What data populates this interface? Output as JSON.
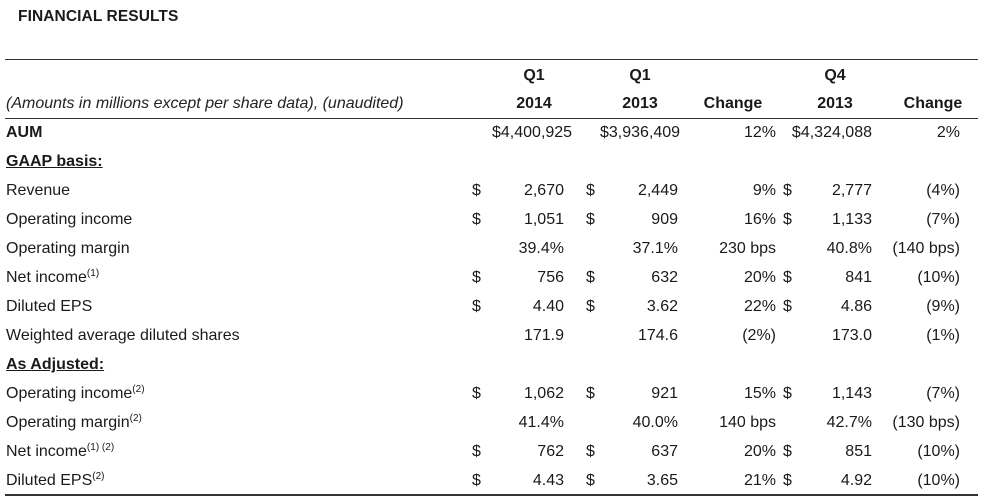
{
  "title": "FINANCIAL RESULTS",
  "header": {
    "note": "(Amounts in millions except per share data), (unaudited)",
    "col1_line1": "Q1",
    "col1_line2": "2014",
    "col2_line1": "Q1",
    "col2_line2": "2013",
    "col3": "Change",
    "col4_line1": "Q4",
    "col4_line2": "2013",
    "col5": "Change"
  },
  "rows": [
    {
      "label": "AUM",
      "sup": "",
      "kind": "bold",
      "d1": "",
      "v1": "$4,400,925",
      "d2": "",
      "v2": "$3,936,409",
      "c1": "12%",
      "d3": "",
      "v3": "$4,324,088",
      "c2": "2%"
    },
    {
      "label": "GAAP basis:",
      "sup": "",
      "kind": "section",
      "d1": "",
      "v1": "",
      "d2": "",
      "v2": "",
      "c1": "",
      "d3": "",
      "v3": "",
      "c2": ""
    },
    {
      "label": "Revenue",
      "sup": "",
      "kind": "normal",
      "d1": "$",
      "v1": "2,670",
      "d2": "$",
      "v2": "2,449",
      "c1": "9%",
      "d3": "$",
      "v3": "2,777",
      "c2": "(4%)"
    },
    {
      "label": "Operating income",
      "sup": "",
      "kind": "normal",
      "d1": "$",
      "v1": "1,051",
      "d2": "$",
      "v2": "909",
      "c1": "16%",
      "d3": "$",
      "v3": "1,133",
      "c2": "(7%)"
    },
    {
      "label": "Operating margin",
      "sup": "",
      "kind": "normal",
      "d1": "",
      "v1": "39.4%",
      "d2": "",
      "v2": "37.1%",
      "c1": "230 bps",
      "d3": "",
      "v3": "40.8%",
      "c2": "(140 bps)"
    },
    {
      "label": "Net income",
      "sup": "(1)",
      "kind": "normal",
      "d1": "$",
      "v1": "756",
      "d2": "$",
      "v2": "632",
      "c1": "20%",
      "d3": "$",
      "v3": "841",
      "c2": "(10%)"
    },
    {
      "label": "Diluted EPS",
      "sup": "",
      "kind": "normal",
      "d1": "$",
      "v1": "4.40",
      "d2": "$",
      "v2": "3.62",
      "c1": "22%",
      "d3": "$",
      "v3": "4.86",
      "c2": "(9%)"
    },
    {
      "label": "Weighted average diluted shares",
      "sup": "",
      "kind": "normal",
      "d1": "",
      "v1": "171.9",
      "d2": "",
      "v2": "174.6",
      "c1": "(2%)",
      "d3": "",
      "v3": "173.0",
      "c2": "(1%)"
    },
    {
      "label": "As Adjusted:",
      "sup": "",
      "kind": "section",
      "d1": "",
      "v1": "",
      "d2": "",
      "v2": "",
      "c1": "",
      "d3": "",
      "v3": "",
      "c2": ""
    },
    {
      "label": "Operating income",
      "sup": "(2)",
      "kind": "normal",
      "d1": "$",
      "v1": "1,062",
      "d2": "$",
      "v2": "921",
      "c1": "15%",
      "d3": "$",
      "v3": "1,143",
      "c2": "(7%)"
    },
    {
      "label": "Operating margin",
      "sup": "(2)",
      "kind": "normal",
      "d1": "",
      "v1": "41.4%",
      "d2": "",
      "v2": "40.0%",
      "c1": "140 bps",
      "d3": "",
      "v3": "42.7%",
      "c2": "(130 bps)"
    },
    {
      "label": "Net income",
      "sup": "(1) (2)",
      "kind": "normal",
      "d1": "$",
      "v1": "762",
      "d2": "$",
      "v2": "637",
      "c1": "20%",
      "d3": "$",
      "v3": "851",
      "c2": "(10%)"
    },
    {
      "label": "Diluted EPS",
      "sup": "(2)",
      "kind": "normal",
      "d1": "$",
      "v1": "4.43",
      "d2": "$",
      "v2": "3.65",
      "c1": "21%",
      "d3": "$",
      "v3": "4.92",
      "c2": "(10%)"
    }
  ]
}
